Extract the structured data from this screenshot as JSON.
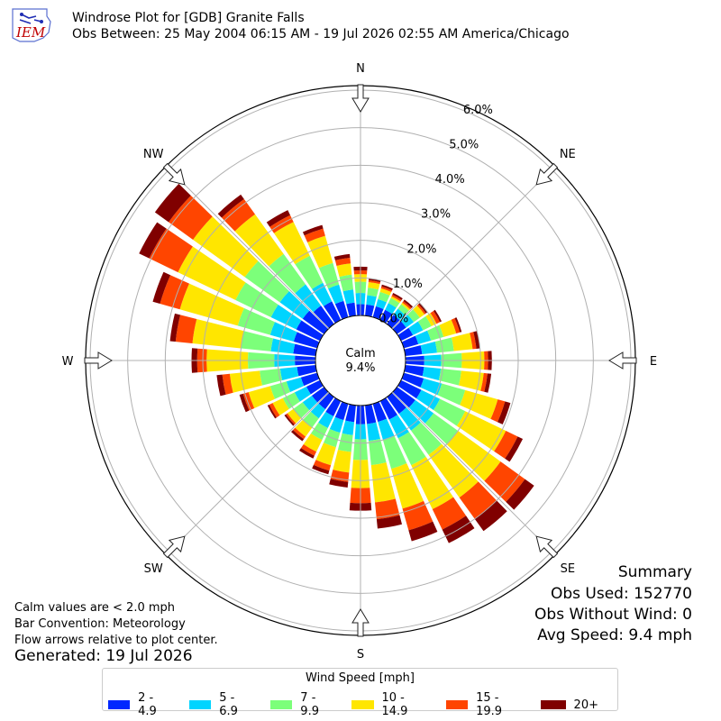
{
  "header": {
    "logo_text": "IEM",
    "title": "Windrose Plot for [GDB] Granite Falls",
    "subtitle": "Obs Between: 25 May 2004 06:15 AM - 19 Jul 2026 02:55 AM America/Chicago"
  },
  "notes": {
    "calm_def": "Calm values are < 2.0 mph",
    "bar_convention": "Bar Convention: Meteorology",
    "flow_arrows": "Flow arrows relative to plot center.",
    "generated": "Generated: 19 Jul 2026"
  },
  "summary": {
    "title": "Summary",
    "obs_used": "Obs Used: 152770",
    "obs_without_wind": "Obs Without Wind: 0",
    "avg_speed": "Avg Speed: 9.4 mph"
  },
  "colors": {
    "bins": [
      "#0028ff",
      "#00d4ff",
      "#7cff7a",
      "#ffe600",
      "#ff4500",
      "#800000"
    ]
  },
  "chart_data": {
    "type": "windrose",
    "compass_labels": [
      "N",
      "NE",
      "E",
      "SE",
      "S",
      "SW",
      "W",
      "NW"
    ],
    "radial_ticks": [
      "0.0%",
      "1.0%",
      "2.0%",
      "3.0%",
      "4.0%",
      "5.0%",
      "6.0%"
    ],
    "rmax": 6.0,
    "calm_label": "Calm",
    "calm_value": "9.4%",
    "calm_percent": 9.4,
    "legend_title": "Wind Speed [mph]",
    "bins": [
      "2 - 4.9",
      "5 - 6.9",
      "7 - 9.9",
      "10 - 14.9",
      "15 - 19.9",
      "20+"
    ],
    "directions": [
      0,
      10,
      20,
      30,
      40,
      50,
      60,
      70,
      80,
      90,
      100,
      110,
      120,
      130,
      140,
      150,
      160,
      170,
      180,
      190,
      200,
      210,
      220,
      230,
      240,
      250,
      260,
      270,
      280,
      290,
      300,
      310,
      320,
      330,
      340,
      350
    ],
    "cumulative_percent": [
      [
        0.3,
        0.6,
        0.9,
        1.1,
        1.2,
        1.3
      ],
      [
        0.3,
        0.55,
        0.75,
        0.9,
        0.95,
        1.0
      ],
      [
        0.3,
        0.5,
        0.7,
        0.8,
        0.85,
        0.9
      ],
      [
        0.3,
        0.5,
        0.65,
        0.7,
        0.75,
        0.8
      ],
      [
        0.3,
        0.5,
        0.65,
        0.7,
        0.75,
        0.8
      ],
      [
        0.3,
        0.55,
        0.75,
        0.9,
        0.95,
        1.0
      ],
      [
        0.35,
        0.65,
        0.9,
        1.05,
        1.15,
        1.2
      ],
      [
        0.4,
        0.75,
        1.1,
        1.45,
        1.55,
        1.6
      ],
      [
        0.45,
        0.85,
        1.3,
        1.8,
        1.9,
        2.0
      ],
      [
        0.5,
        0.95,
        1.5,
        2.1,
        2.2,
        2.3
      ],
      [
        0.5,
        0.95,
        1.5,
        2.1,
        2.2,
        2.3
      ],
      [
        0.55,
        1.05,
        1.7,
        2.6,
        2.8,
        2.95
      ],
      [
        0.6,
        1.15,
        1.9,
        3.1,
        3.45,
        3.6
      ],
      [
        0.6,
        1.2,
        2.0,
        3.4,
        4.2,
        4.5
      ],
      [
        0.55,
        1.1,
        1.9,
        3.3,
        4.0,
        4.4
      ],
      [
        0.55,
        1.1,
        1.9,
        3.2,
        3.8,
        4.2
      ],
      [
        0.5,
        1.0,
        1.8,
        2.9,
        3.5,
        3.8
      ],
      [
        0.5,
        0.95,
        1.6,
        2.6,
        3.05,
        3.3
      ],
      [
        0.5,
        0.9,
        1.45,
        2.2,
        2.6,
        2.8
      ],
      [
        0.45,
        0.8,
        1.25,
        1.8,
        2.05,
        2.2
      ],
      [
        0.45,
        0.8,
        1.2,
        1.7,
        1.85,
        1.95
      ],
      [
        0.45,
        0.8,
        1.15,
        1.5,
        1.62,
        1.7
      ],
      [
        0.4,
        0.7,
        1.0,
        1.3,
        1.38,
        1.45
      ],
      [
        0.4,
        0.7,
        1.0,
        1.2,
        1.25,
        1.3
      ],
      [
        0.4,
        0.75,
        1.1,
        1.4,
        1.5,
        1.55
      ],
      [
        0.45,
        0.85,
        1.3,
        1.9,
        2.05,
        2.15
      ],
      [
        0.5,
        0.95,
        1.5,
        2.3,
        2.5,
        2.65
      ],
      [
        0.55,
        1.1,
        1.8,
        2.9,
        3.15,
        3.3
      ],
      [
        0.6,
        1.2,
        2.0,
        3.3,
        3.75,
        3.9
      ],
      [
        0.65,
        1.3,
        2.2,
        3.8,
        4.35,
        4.55
      ],
      [
        0.7,
        1.45,
        2.5,
        4.2,
        5.05,
        5.35
      ],
      [
        0.7,
        1.45,
        2.6,
        4.3,
        5.1,
        5.55
      ],
      [
        0.6,
        1.3,
        2.3,
        3.6,
        4.1,
        4.25
      ],
      [
        0.55,
        1.1,
        1.9,
        2.9,
        3.1,
        3.25
      ],
      [
        0.45,
        0.9,
        1.5,
        2.25,
        2.45,
        2.55
      ],
      [
        0.35,
        0.7,
        1.1,
        1.4,
        1.55,
        1.65
      ]
    ]
  }
}
